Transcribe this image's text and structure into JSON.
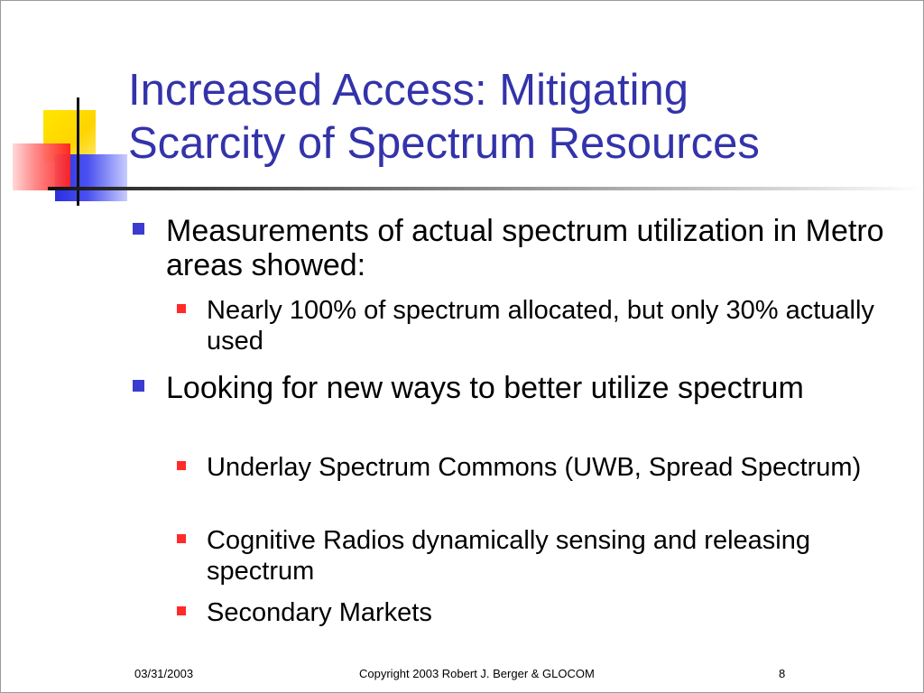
{
  "slide": {
    "title_line1": "Increased Access: Mitigating",
    "title_line2": "Scarcity of Spectrum Resources",
    "bullets": [
      {
        "text": "Measurements of actual spectrum utilization in Metro areas showed:",
        "sub": [
          "Nearly 100% of spectrum allocated, but only 30% actually used"
        ]
      },
      {
        "text": "Looking for new ways to better utilize spectrum",
        "sub": [
          "Underlay Spectrum Commons (UWB, Spread Spectrum)",
          "Cognitive Radios dynamically sensing and releasing spectrum",
          "Secondary Markets"
        ]
      }
    ],
    "footer": {
      "date": "03/31/2003",
      "copyright": "Copyright 2003 Robert J. Berger & GLOCOM",
      "page_number": "8"
    }
  },
  "colors": {
    "title": "#3333aa",
    "level1_bullet": "#3b3bd0",
    "level2_bullet": "#ff2a2a"
  }
}
